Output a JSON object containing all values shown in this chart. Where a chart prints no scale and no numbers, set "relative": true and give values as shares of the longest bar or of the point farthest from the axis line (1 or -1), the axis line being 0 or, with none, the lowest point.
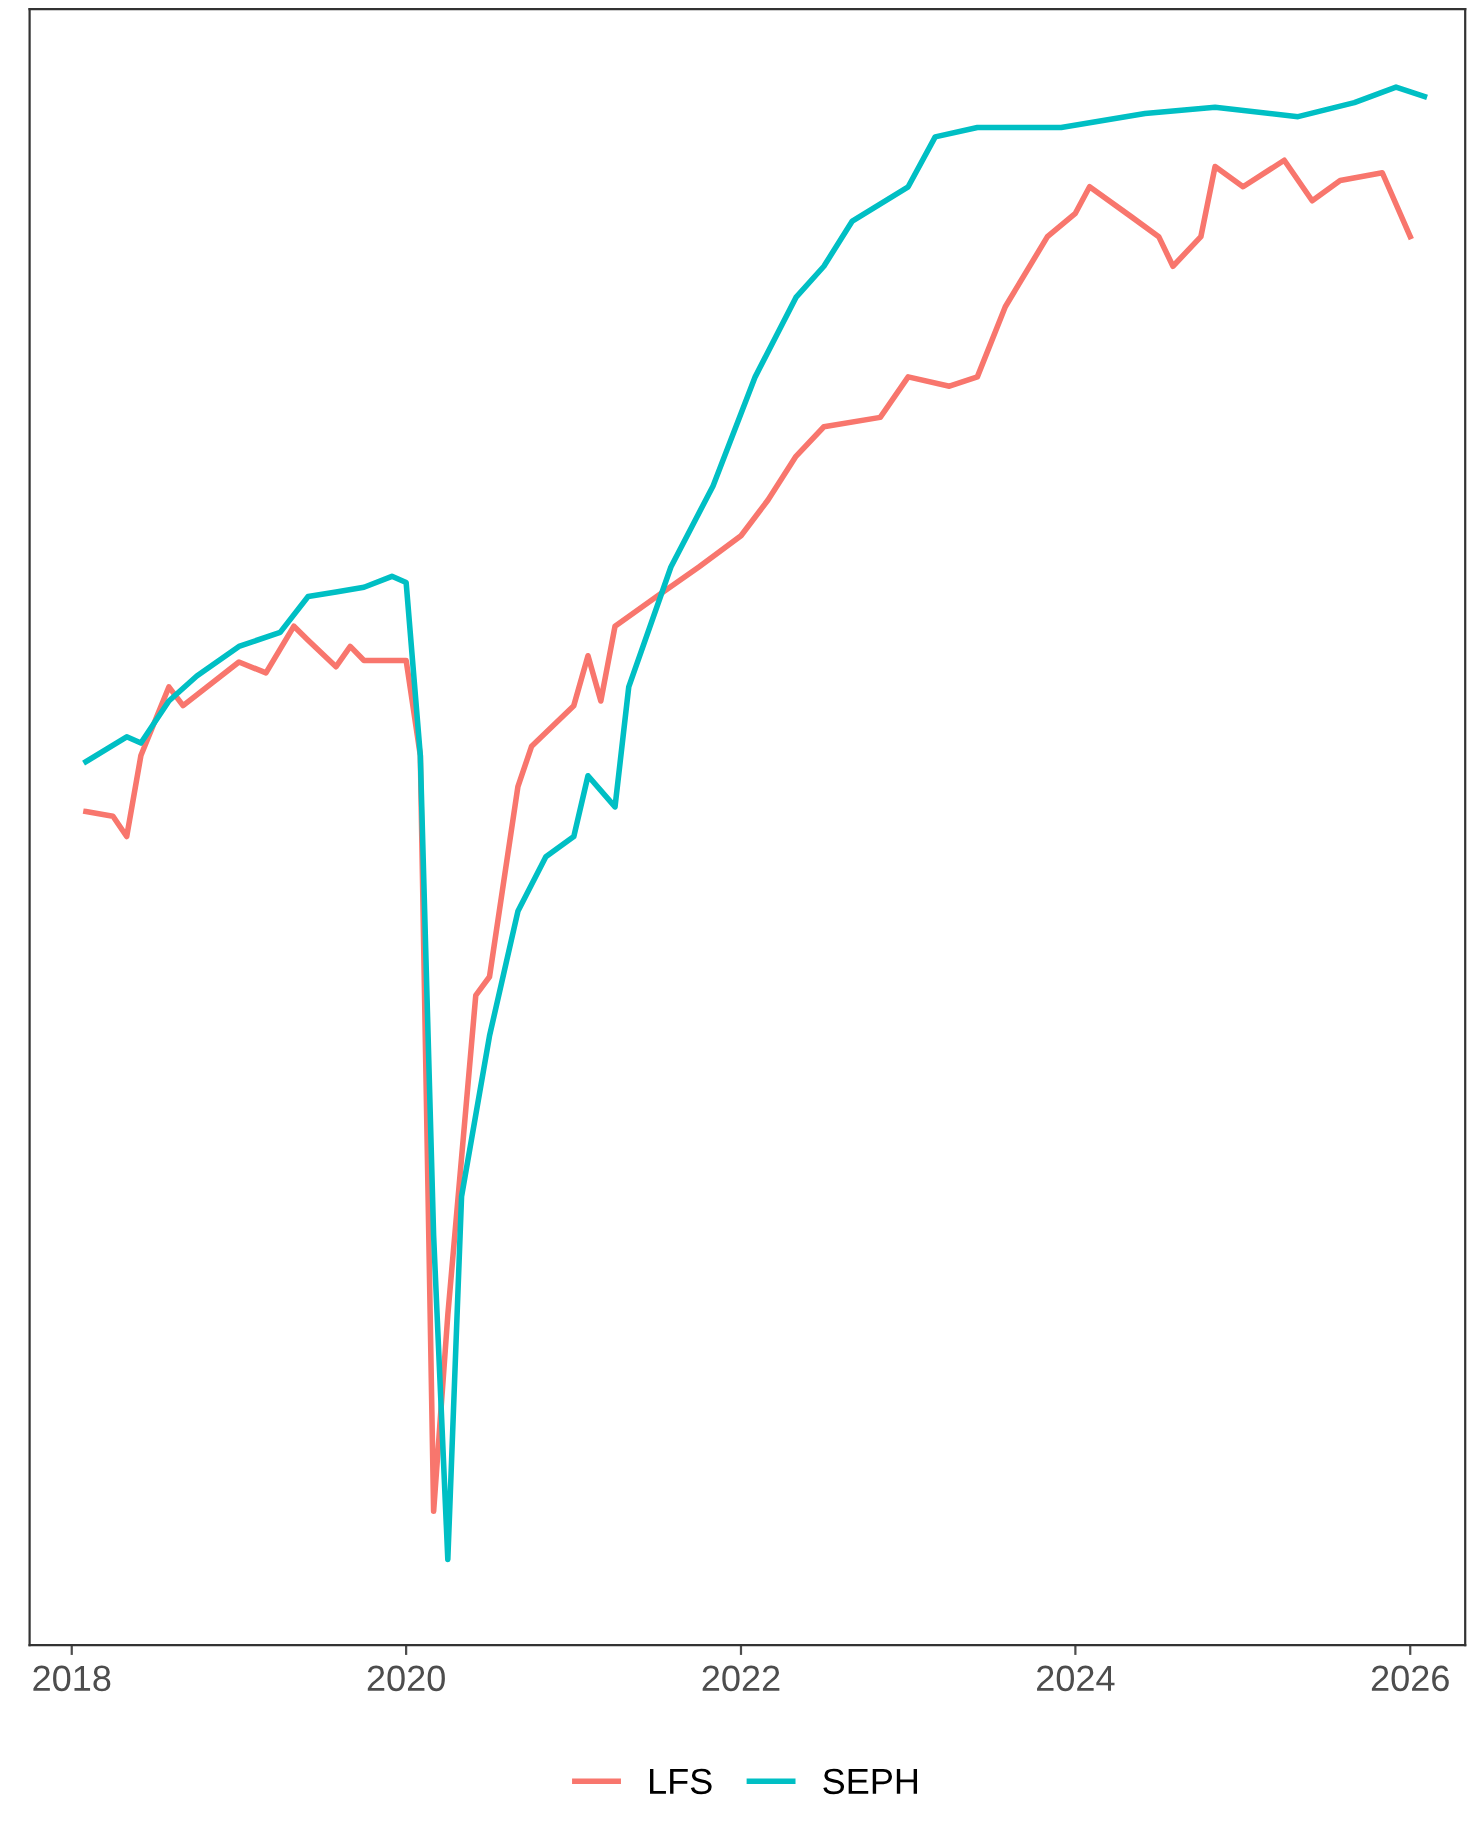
{
  "chart_data": {
    "type": "line",
    "relative": true,
    "xlim": [
      "2017-10",
      "2026-05"
    ],
    "xticks": [
      {
        "value": "2018-01",
        "label": "2018"
      },
      {
        "value": "2020-01",
        "label": "2020"
      },
      {
        "value": "2022-01",
        "label": "2022"
      },
      {
        "value": "2024-01",
        "label": "2024"
      },
      {
        "value": "2026-01",
        "label": "2026"
      }
    ],
    "legend": "bottom",
    "grid": false,
    "series": [
      {
        "name": "LFS",
        "color": "#f8766d",
        "x": [
          "2018-02",
          "2018-04",
          "2018-05",
          "2018-06",
          "2018-08",
          "2018-09",
          "2019-01",
          "2019-03",
          "2019-05",
          "2019-06",
          "2019-08",
          "2019-09",
          "2019-10",
          "2020-01",
          "2020-02",
          "2020-03",
          "2020-04",
          "2020-06",
          "2020-07",
          "2020-09",
          "2020-10",
          "2021-01",
          "2021-02",
          "2021-03",
          "2021-04",
          "2021-07",
          "2021-10",
          "2022-01",
          "2022-03",
          "2022-05",
          "2022-07",
          "2022-11",
          "2023-01",
          "2023-04",
          "2023-06",
          "2023-08",
          "2023-11",
          "2024-01",
          "2024-02",
          "2024-05",
          "2024-07",
          "2024-08",
          "2024-10",
          "2024-11",
          "2025-01",
          "2025-04",
          "2025-06",
          "2025-08",
          "2025-11",
          "2026-01"
        ],
        "values": [
          0.535,
          0.532,
          0.519,
          0.571,
          0.615,
          0.603,
          0.631,
          0.624,
          0.654,
          0.645,
          0.628,
          0.641,
          0.632,
          0.632,
          0.571,
          0.086,
          0.212,
          0.417,
          0.429,
          0.551,
          0.577,
          0.603,
          0.635,
          0.606,
          0.654,
          0.673,
          0.692,
          0.712,
          0.735,
          0.763,
          0.782,
          0.788,
          0.814,
          0.808,
          0.814,
          0.859,
          0.904,
          0.919,
          0.936,
          0.917,
          0.904,
          0.885,
          0.904,
          0.949,
          0.936,
          0.953,
          0.927,
          0.94,
          0.945,
          0.904
        ]
      },
      {
        "name": "SEPH",
        "color": "#00bfc4",
        "x": [
          "2018-02",
          "2018-05",
          "2018-06",
          "2018-08",
          "2018-10",
          "2019-01",
          "2019-04",
          "2019-06",
          "2019-08",
          "2019-10",
          "2019-12",
          "2020-01",
          "2020-02",
          "2020-03",
          "2020-04",
          "2020-05",
          "2020-07",
          "2020-09",
          "2020-11",
          "2021-01",
          "2021-02",
          "2021-04",
          "2021-05",
          "2021-08",
          "2021-11",
          "2022-02",
          "2022-05",
          "2022-07",
          "2022-09",
          "2023-01",
          "2023-03",
          "2023-06",
          "2023-12",
          "2024-06",
          "2024-11",
          "2025-05",
          "2025-09",
          "2025-12",
          "2026-02"
        ],
        "values": [
          0.567,
          0.583,
          0.579,
          0.606,
          0.622,
          0.641,
          0.65,
          0.673,
          0.676,
          0.679,
          0.686,
          0.682,
          0.571,
          0.263,
          0.055,
          0.288,
          0.391,
          0.471,
          0.506,
          0.519,
          0.558,
          0.538,
          0.615,
          0.692,
          0.744,
          0.814,
          0.865,
          0.885,
          0.914,
          0.936,
          0.968,
          0.974,
          0.974,
          0.983,
          0.987,
          0.981,
          0.99,
          1.0,
          0.994
        ]
      }
    ]
  }
}
